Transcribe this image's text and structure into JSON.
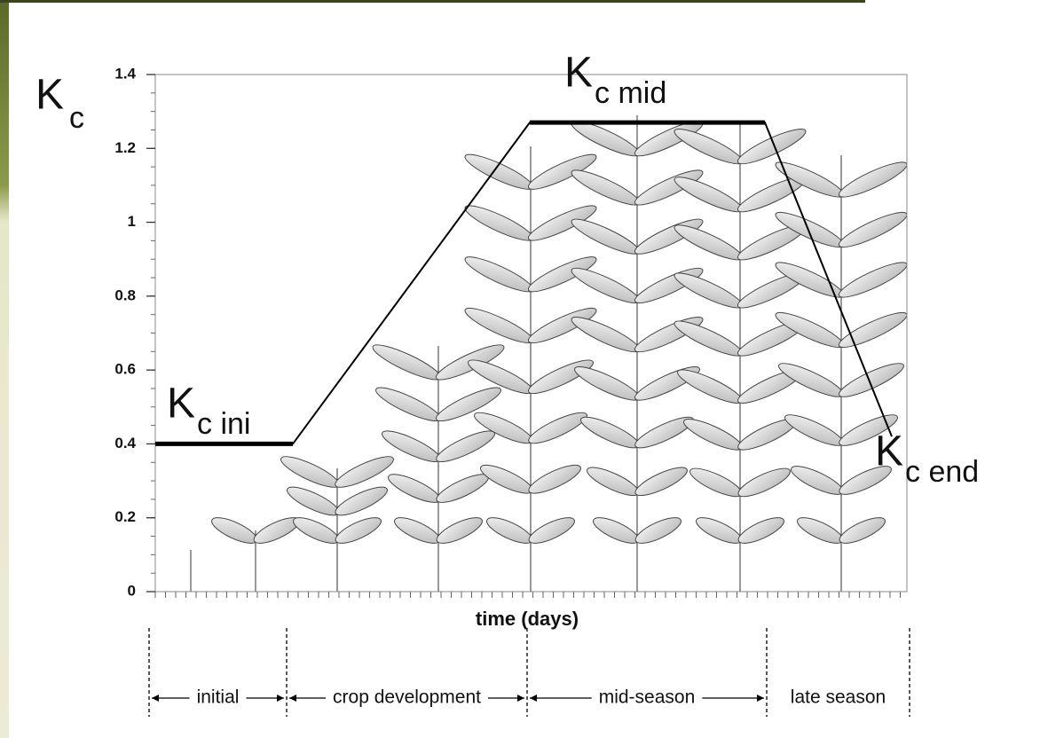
{
  "chart_data": {
    "type": "line",
    "y_label": {
      "text": "K",
      "sub": "c"
    },
    "x_label": "time (days)",
    "categories": [
      null,
      null,
      null,
      null,
      null
    ],
    "series": [
      {
        "name": null,
        "color": "#000000",
        "values": [
          0.4,
          0.4,
          1.27,
          1.27,
          0.42
        ]
      }
    ],
    "ylim": [
      0,
      1.4
    ],
    "yticks": [
      0,
      0.2,
      0.4,
      0.6,
      0.8,
      1,
      1.2,
      1.4
    ],
    "annotations": [
      {
        "text": "K",
        "sub": "c ini"
      },
      {
        "text": "K",
        "sub": "c mid"
      },
      {
        "text": "K",
        "sub": "c end"
      }
    ],
    "stages": [
      "initial",
      "crop development",
      "mid-season",
      "late season"
    ]
  }
}
